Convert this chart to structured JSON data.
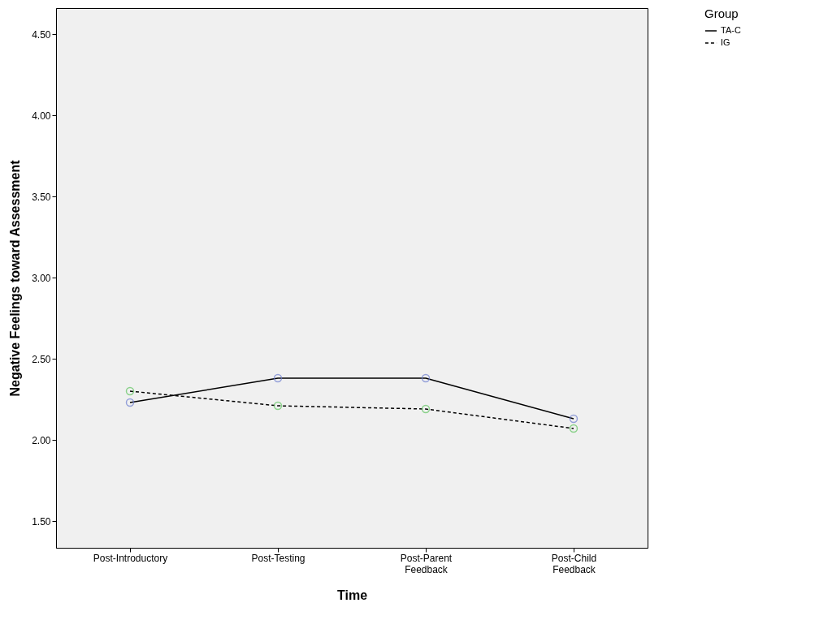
{
  "chart_data": {
    "type": "line",
    "xlabel": "Time",
    "ylabel": "Negative Feelings toward Assessment",
    "legend_title": "Group",
    "categories": [
      "Post-Introductory",
      "Post-Testing",
      "Post-Parent Feedback",
      "Post-Child Feedback"
    ],
    "series": [
      {
        "name": "TA-C",
        "color": "#000000",
        "line_style": "solid",
        "colors": [
          "#6e7fd0",
          "#6e7fd0",
          "#6e7fd0",
          "#6e7fd0"
        ],
        "values": [
          2.23,
          2.38,
          2.38,
          2.13
        ]
      },
      {
        "name": "IG",
        "color": "#000000",
        "line_style": "dashed",
        "colors": [
          "#5fc45f",
          "#5fc45f",
          "#5fc45f",
          "#5fc45f"
        ],
        "values": [
          2.3,
          2.21,
          2.19,
          2.07
        ]
      }
    ],
    "ylim": [
      1.335,
      4.66
    ],
    "yticks": [
      {
        "value": 1.5,
        "label": "1.50"
      },
      {
        "value": 2,
        "label": "2.00"
      },
      {
        "value": 2.5,
        "label": "2.50"
      },
      {
        "value": 3,
        "label": "3.00"
      },
      {
        "value": 3.5,
        "label": "3.50"
      },
      {
        "value": 4,
        "label": "4.00"
      },
      {
        "value": 4.5,
        "label": "4.50"
      }
    ],
    "grid": false,
    "legend": "top right",
    "marker": "circle"
  }
}
